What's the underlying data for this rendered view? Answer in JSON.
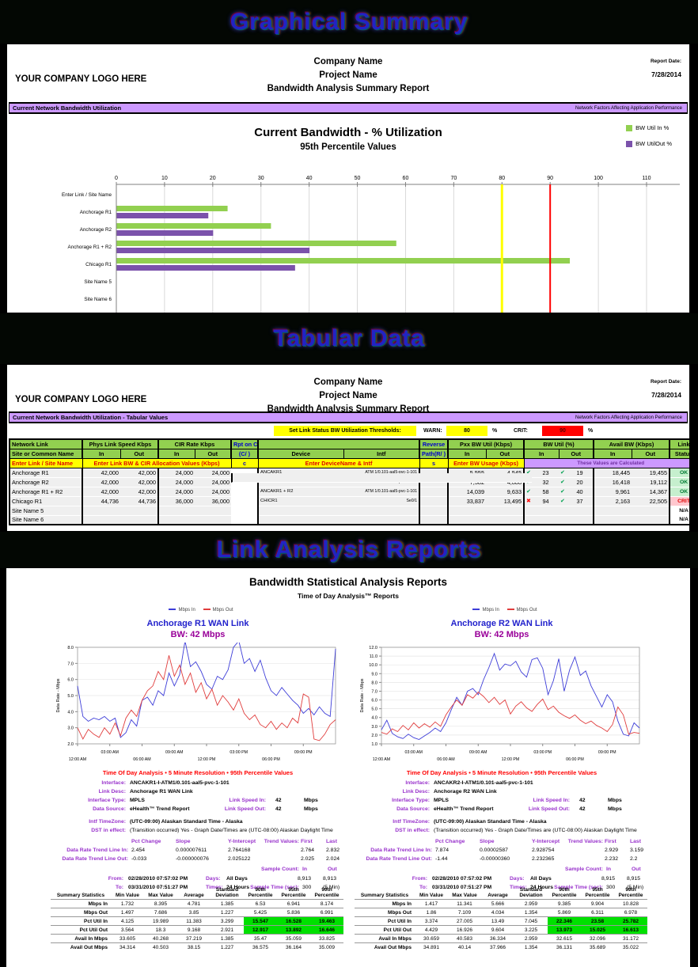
{
  "bands": {
    "graphical": "Graphical Summary",
    "tabular": "Tabular Data",
    "link": "Link Analysis Reports"
  },
  "page_header": {
    "logo": "YOUR COMPANY LOGO HERE",
    "company": "Company Name",
    "project": "Project Name",
    "report": "Bandwidth Analysis Summary Report",
    "report_date_label": "Report Date:",
    "report_date": "7/28/2014"
  },
  "banners": {
    "graphical_left": "Current Network Bandwidth Utilization",
    "tabular_left": "Current Network Bandwidth Utilization - Tabular Values",
    "right": "Network Factors Affecting Application Performance"
  },
  "thresholds": {
    "label": "Set Link Status BW Utilization Thresholds:",
    "warn_label": "WARN:",
    "warn_value": "80",
    "pct1": "%",
    "crit_label": "CRIT:",
    "crit_value": "90",
    "pct2": "%"
  },
  "icons": {
    "check_icon": "✔",
    "x_icon": "✖"
  },
  "bw_table": {
    "group_headers": {
      "network_link": "Network Link",
      "phys": "Phys Link Speed Kbps",
      "cir": "CIR Rate Kbps",
      "rpt": "Rpt on CIR",
      "reverse": "Reverse",
      "pbw": "Pxx BW Util (Kbps)",
      "util": "BW Util (%)",
      "avail": "Avail BW (Kbps)",
      "link": "Link"
    },
    "sub_headers": {
      "site": "Site or Common Name",
      "in": "In",
      "out": "Out",
      "rpt": "(C/ )",
      "device": "Device",
      "intf": "Intf",
      "path": "Path(R/ )",
      "status": "Status"
    },
    "entry_row": {
      "site": "Enter Link / Site Name",
      "bw_cir": "Enter Link BW & CIR Allocation Values (Kbps)",
      "c": "c",
      "device": "Enter DeviceName & Intf",
      "s": "s",
      "usage": "Enter BW Usage (Kbps)",
      "calc": "These Values are Calculated"
    },
    "rows": [
      {
        "site": "Anchorage R1",
        "phys_in": "42,000",
        "phys_out": "42,000",
        "cir_in": "24,000",
        "cir_out": "24,000",
        "rpt": "C",
        "device": "ANCAKR1",
        "intf": "ATM 1/0.101-aal5-pvc-1-101",
        "rev": "",
        "p_in": "5,555",
        "p_out": "4,545",
        "u_in_icon": "check",
        "u_in": "23",
        "u_out_icon": "check",
        "u_out": "19",
        "a_in": "18,445",
        "a_out": "19,455",
        "status": "OK"
      },
      {
        "site": "Anchorage R2",
        "phys_in": "42,000",
        "phys_out": "42,000",
        "cir_in": "24,000",
        "cir_out": "24,000",
        "rpt": "C",
        "device": "ANCAKR2",
        "intf": "ATM 1/0.101-aal5-pvc-1-101",
        "rev": "",
        "p_in": "7,582",
        "p_out": "4,888",
        "u_in_icon": "check",
        "u_in": "32",
        "u_out_icon": "check",
        "u_out": "20",
        "a_in": "16,418",
        "a_out": "19,112",
        "status": "OK"
      },
      {
        "site": "Anchorage R1 + R2",
        "phys_in": "42,000",
        "phys_out": "42,000",
        "cir_in": "24,000",
        "cir_out": "24,000",
        "rpt": "C",
        "device": "ANCAKR1 + R2",
        "intf": "ATM 1/0.101-aal5-pvc-1-101",
        "rev": "",
        "p_in": "14,039",
        "p_out": "9,633",
        "u_in_icon": "check",
        "u_in": "58",
        "u_out_icon": "check",
        "u_out": "40",
        "a_in": "9,961",
        "a_out": "14,367",
        "status": "OK"
      },
      {
        "site": "Chicago R1",
        "phys_in": "44,736",
        "phys_out": "44,736",
        "cir_in": "36,000",
        "cir_out": "36,000",
        "rpt": "C",
        "device": "CHICR1",
        "intf": "Se0/1",
        "rev": "",
        "p_in": "33,837",
        "p_out": "13,495",
        "u_in_icon": "x",
        "u_in": "94",
        "u_out_icon": "check",
        "u_out": "37",
        "a_in": "2,163",
        "a_out": "22,505",
        "status": "CRIT"
      },
      {
        "site": "Site Name 5",
        "phys_in": "",
        "phys_out": "",
        "cir_in": "",
        "cir_out": "",
        "rpt": "",
        "device": "",
        "intf": "",
        "rev": "",
        "p_in": "",
        "p_out": "",
        "u_in_icon": "",
        "u_in": "",
        "u_out_icon": "",
        "u_out": "",
        "a_in": "",
        "a_out": "",
        "status": "N/A"
      },
      {
        "site": "Site Name 6",
        "phys_in": "",
        "phys_out": "",
        "cir_in": "",
        "cir_out": "",
        "rpt": "",
        "device": "",
        "intf": "",
        "rev": "",
        "p_in": "",
        "p_out": "",
        "u_in_icon": "",
        "u_in": "",
        "u_out_icon": "",
        "u_out": "",
        "a_in": "",
        "a_out": "",
        "status": "N/A"
      }
    ]
  },
  "link_section": {
    "title": "Bandwidth Statistical Analysis Reports",
    "subtitle": "Time of Day Analysis™ Reports",
    "caption": "Time Of Day Analysis  •  5 Minute Resolution  •  95th Percentile Values",
    "reports": [
      {
        "title": "Anchorage R1 WAN Link",
        "bw": "BW:  42 Mbps",
        "info": {
          "rows": [
            {
              "l": "Interface:",
              "v": "ANCAKR1-I-ATM1/0.101-aal5-pvc-1-101",
              "b": true
            },
            {
              "l": "Link Desc:",
              "v": "Anchorage R1 WAN Link",
              "b": true
            },
            {
              "l": "Interface Type:",
              "v": "MPLS",
              "b": true,
              "l2": "Link Speed In:",
              "v2": "42",
              "u2": "Mbps"
            },
            {
              "l": "Data Source:",
              "v": "eHealth™ Trend Report",
              "b": true,
              "l2": "Link Speed Out:",
              "v2": "42",
              "u2": "Mbps"
            },
            {
              "l": "Intf TimeZone:",
              "v": "(UTC-09:00) Alaskan Standard Time - Alaska",
              "b": true
            },
            {
              "l": "DST in effect:",
              "v": "(Transition occurred) Yes - Graph Date/Times are (UTC-08:00) Alaskan Daylight Time",
              "b": false
            }
          ],
          "trend": {
            "headers": [
              "Pct Change",
              "Slope",
              "Y-Intercept",
              "Trend Values:",
              "First",
              "Last"
            ],
            "in_label": "Data Rate Trend Line In:",
            "in": [
              "2.454",
              "0.000007611",
              "2.764168",
              "2.764",
              "2.832"
            ],
            "out_label": "Data Rate Trend Line Out:",
            "out": [
              "-0.033",
              "-0.000000076",
              "2.025122",
              "2.025",
              "2.024"
            ],
            "sample_label": "Sample Count:",
            "in_col": "In",
            "out_col": "Out",
            "from_label": "From:",
            "from": "02/28/2010 07:57:02 PM",
            "days_label": "Days:",
            "days": "All Days",
            "count_in": "8,913",
            "count_out": "8,913",
            "to_label": "To:",
            "to": "03/31/2010 07:51:27 PM",
            "times_label": "Times:",
            "times": "24 Hours",
            "sample_time_label": "Sample Time (sec):",
            "sample_time": "300",
            "sample_time2": "(5 Min)"
          }
        },
        "summary": {
          "headers": [
            "Summary Statistics",
            "Min Value",
            "Max Value",
            "Average",
            "Standard Deviation",
            "90th Percentile",
            "95th Percentile",
            "99th Percentile"
          ],
          "rows": [
            {
              "label": "Mbps In",
              "values": [
                "1.732",
                "8.395",
                "4.781",
                "1.385",
                "6.53",
                "6.941",
                "8.174"
              ],
              "hl": false
            },
            {
              "label": "Mbps Out",
              "values": [
                "1.497",
                "7.686",
                "3.85",
                "1.227",
                "5.425",
                "5.836",
                "6.991"
              ],
              "hl": false
            },
            {
              "label": "Pct Util In",
              "values": [
                "4.125",
                "19.989",
                "11.383",
                "3.299",
                "15.547",
                "16.528",
                "19.463"
              ],
              "hl": true
            },
            {
              "label": "Pct Util Out",
              "values": [
                "3.564",
                "18.3",
                "9.168",
                "2.921",
                "12.917",
                "13.892",
                "16.646"
              ],
              "hl": true
            },
            {
              "label": "Avail In Mbps",
              "values": [
                "33.605",
                "40.268",
                "37.219",
                "1.385",
                "35.47",
                "35.059",
                "33.825"
              ],
              "hl": false
            },
            {
              "label": "Avail Out Mbps",
              "values": [
                "34.314",
                "40.503",
                "38.15",
                "1.227",
                "36.575",
                "36.164",
                "35.009"
              ],
              "hl": false
            }
          ]
        }
      },
      {
        "title": "Anchorage R2 WAN Link",
        "bw": "BW:  42 Mbps",
        "info": {
          "rows": [
            {
              "l": "Interface:",
              "v": "ANCAKR2-I-ATM1/0.101-aal5-pvc-1-101",
              "b": true
            },
            {
              "l": "Link Desc:",
              "v": "Anchorage R2 WAN Link",
              "b": true
            },
            {
              "l": "Interface Type:",
              "v": "MPLS",
              "b": true,
              "l2": "Link Speed In:",
              "v2": "42",
              "u2": "Mbps"
            },
            {
              "l": "Data Source:",
              "v": "eHealth™ Trend Report",
              "b": true,
              "l2": "Link Speed Out:",
              "v2": "42",
              "u2": "Mbps"
            },
            {
              "l": "Intf TimeZone:",
              "v": "(UTC-09:00) Alaskan Standard Time - Alaska",
              "b": true
            },
            {
              "l": "DST in effect:",
              "v": "(Transition occurred) Yes - Graph Date/Times are (UTC-08:00) Alaskan Daylight Time",
              "b": false
            }
          ],
          "trend": {
            "headers": [
              "Pct Change",
              "Slope",
              "Y-Intercept",
              "Trend Values:",
              "First",
              "Last"
            ],
            "in_label": "Data Rate Trend Line In:",
            "in": [
              "7.874",
              "0.00002587",
              "2.928754",
              "2.929",
              "3.159"
            ],
            "out_label": "Data Rate Trend Line Out:",
            "out": [
              "-1.44",
              "-0.00000360",
              "2.232365",
              "2.232",
              "2.2"
            ],
            "sample_label": "Sample Count:",
            "in_col": "In",
            "out_col": "Out",
            "from_label": "From:",
            "from": "02/28/2010 07:57:02 PM",
            "days_label": "Days:",
            "days": "All Days",
            "count_in": "8,915",
            "count_out": "8,915",
            "to_label": "To:",
            "to": "03/31/2010 07:51:27 PM",
            "times_label": "Times:",
            "times": "24 Hours",
            "sample_time_label": "Sample Time (sec):",
            "sample_time": "300",
            "sample_time2": "(5 Min)"
          }
        },
        "summary": {
          "headers": [
            "Summary Statistics",
            "Min Value",
            "Max Value",
            "Average",
            "Standard Deviation",
            "90th Percentile",
            "95th Percentile",
            "99th Percentile"
          ],
          "rows": [
            {
              "label": "Mbps In",
              "values": [
                "1.417",
                "11.341",
                "5.666",
                "2.959",
                "9.385",
                "9.904",
                "10.828"
              ],
              "hl": false
            },
            {
              "label": "Mbps Out",
              "values": [
                "1.86",
                "7.109",
                "4.034",
                "1.354",
                "5.869",
                "6.311",
                "6.978"
              ],
              "hl": false
            },
            {
              "label": "Pct Util In",
              "values": [
                "3.374",
                "27.005",
                "13.49",
                "7.045",
                "22.346",
                "23.58",
                "25.782"
              ],
              "hl": true
            },
            {
              "label": "Pct Util Out",
              "values": [
                "4.429",
                "16.926",
                "9.604",
                "3.225",
                "13.973",
                "15.025",
                "16.613"
              ],
              "hl": true
            },
            {
              "label": "Avail In Mbps",
              "values": [
                "30.659",
                "40.583",
                "36.334",
                "2.959",
                "32.615",
                "32.096",
                "31.172"
              ],
              "hl": false
            },
            {
              "label": "Avail Out Mbps",
              "values": [
                "34.891",
                "40.14",
                "37.966",
                "1.354",
                "36.131",
                "35.689",
                "35.022"
              ],
              "hl": false
            }
          ]
        }
      }
    ]
  },
  "chart_data": [
    {
      "type": "bar",
      "title": "Current Bandwidth - % Utilization",
      "subtitle": "95th Percentile Values",
      "categories": [
        "Enter Link / Site Name",
        "Anchorage R1",
        "Anchorage R2",
        "Anchorage R1 + R2",
        "Chicago R1",
        "Site Name 5",
        "Site Name 6"
      ],
      "series": [
        {
          "name": "BW Util In %",
          "color": "#92D050",
          "values": [
            0,
            23,
            32,
            58,
            94,
            0,
            0
          ]
        },
        {
          "name": "BW UtilOut %",
          "color": "#7B52AB",
          "values": [
            0,
            19,
            20,
            40,
            37,
            0,
            0
          ]
        }
      ],
      "xlim": [
        0,
        115
      ],
      "tick_step": 10,
      "tick_max": 110,
      "thresholds": [
        {
          "name": "warn-line",
          "value": 80,
          "color": "#FFFF00"
        },
        {
          "name": "crit-line",
          "value": 90,
          "color": "#FF0000"
        }
      ],
      "legend_position": "top-right",
      "grid": true
    },
    {
      "type": "line",
      "title": "Anchorage R1 WAN Link",
      "ylabel": "Data Rate - Mbps",
      "ylim": [
        2,
        8
      ],
      "ystep": 1,
      "x_ticks": [
        "12:00 AM",
        "03:00 AM",
        "06:00 AM",
        "09:00 AM",
        "12:00 PM",
        "03:00 PM",
        "06:00 PM",
        "09:00 PM"
      ],
      "series": [
        {
          "name": "Mbps In",
          "color": "#3D3DD8",
          "values": [
            5.6,
            3.7,
            3.4,
            3.6,
            3.5,
            3.7,
            3.4,
            3.6,
            2.4,
            2.7,
            3.5,
            3.1,
            4.7,
            4.9,
            4.4,
            5.3,
            5.0,
            6.4,
            5.6,
            6.3,
            8.4,
            6.8,
            7.1,
            6.5,
            5.7,
            5.4,
            6.2,
            6.0,
            6.6,
            8.0,
            8.4,
            7.0,
            7.3,
            6.5,
            7.2,
            6.1,
            5.3,
            5.0,
            5.5,
            5.1,
            4.7,
            4.4,
            3.9,
            4.2,
            3.8,
            4.3,
            3.9,
            3.7,
            7.9
          ]
        },
        {
          "name": "Mbps Out",
          "color": "#E03C3C",
          "values": [
            3.0,
            2.3,
            2.9,
            2.6,
            2.4,
            3.0,
            2.6,
            3.3,
            2.5,
            3.6,
            4.1,
            3.7,
            4.7,
            5.3,
            5.6,
            6.5,
            6.0,
            7.5,
            6.2,
            6.9,
            5.7,
            6.4,
            5.2,
            5.8,
            4.8,
            5.4,
            4.4,
            5.0,
            4.6,
            4.1,
            4.8,
            3.9,
            3.5,
            3.8,
            3.2,
            3.0,
            3.4,
            2.9,
            3.3,
            3.0,
            3.6,
            3.3,
            5.1,
            4.9,
            2.3,
            2.2,
            2.6,
            3.2,
            3.5
          ]
        }
      ],
      "grid": true
    },
    {
      "type": "line",
      "title": "Anchorage R2 WAN Link",
      "ylabel": "Data Rate - Mbps",
      "ylim": [
        1,
        12
      ],
      "ystep": 1,
      "x_ticks": [
        "12:00 AM",
        "03:00 AM",
        "06:00 AM",
        "09:00 AM",
        "12:00 PM",
        "03:00 PM",
        "06:00 PM",
        "09:00 PM"
      ],
      "series": [
        {
          "name": "Mbps In",
          "color": "#3D3DD8",
          "values": [
            2.6,
            3.7,
            2.2,
            1.8,
            1.6,
            2.1,
            1.7,
            1.5,
            1.9,
            2.3,
            2.8,
            2.4,
            3.4,
            4.9,
            6.3,
            5.4,
            7.0,
            7.3,
            6.6,
            8.3,
            9.7,
            11.3,
            9.4,
            10.1,
            9.9,
            10.4,
            9.2,
            8.6,
            10.6,
            10.8,
            9.6,
            6.6,
            8.2,
            10.7,
            7.0,
            9.4,
            10.9,
            8.8,
            9.3,
            7.6,
            6.4,
            5.2,
            6.6,
            5.8,
            3.6,
            2.1,
            1.9,
            3.4,
            2.8
          ]
        },
        {
          "name": "Mbps Out",
          "color": "#E03C3C",
          "values": [
            2.3,
            2.1,
            2.7,
            2.4,
            3.1,
            2.6,
            3.4,
            2.8,
            3.3,
            2.9,
            3.5,
            3.0,
            4.3,
            5.2,
            6.0,
            5.4,
            6.6,
            6.2,
            6.9,
            6.4,
            5.7,
            6.3,
            5.5,
            6.0,
            4.4,
            5.3,
            5.8,
            5.1,
            4.7,
            5.5,
            6.1,
            4.9,
            5.3,
            4.6,
            4.2,
            3.9,
            4.3,
            3.7,
            3.3,
            3.6,
            3.1,
            2.8,
            2.4,
            3.2,
            5.2,
            4.3,
            2.1,
            2.3,
            2.2
          ]
        }
      ],
      "grid": true
    }
  ]
}
